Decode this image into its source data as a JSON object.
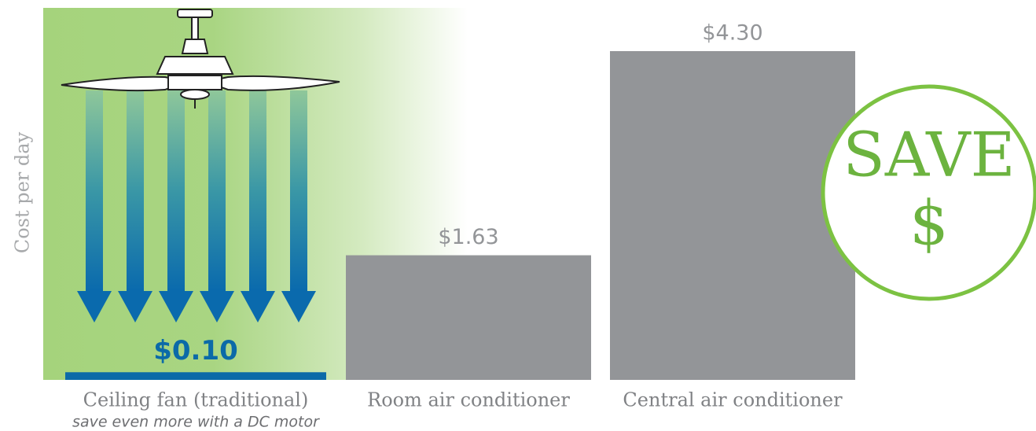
{
  "chart_data": {
    "type": "bar",
    "y_label": "Cost per day",
    "categories": [
      "Ceiling fan (traditional)",
      "Room air conditioner",
      "Central air conditioner"
    ],
    "category_note": "save even more with a DC motor",
    "values": [
      0.1,
      1.63,
      4.3
    ],
    "value_labels": [
      "$0.10",
      "$1.63",
      "$4.30"
    ],
    "colors": [
      "#0b6aa8",
      "#939598",
      "#939598"
    ],
    "label_colors": [
      "#0b6aa8",
      "#939598",
      "#939598"
    ],
    "annotations": [
      "SAVE",
      "$"
    ]
  }
}
